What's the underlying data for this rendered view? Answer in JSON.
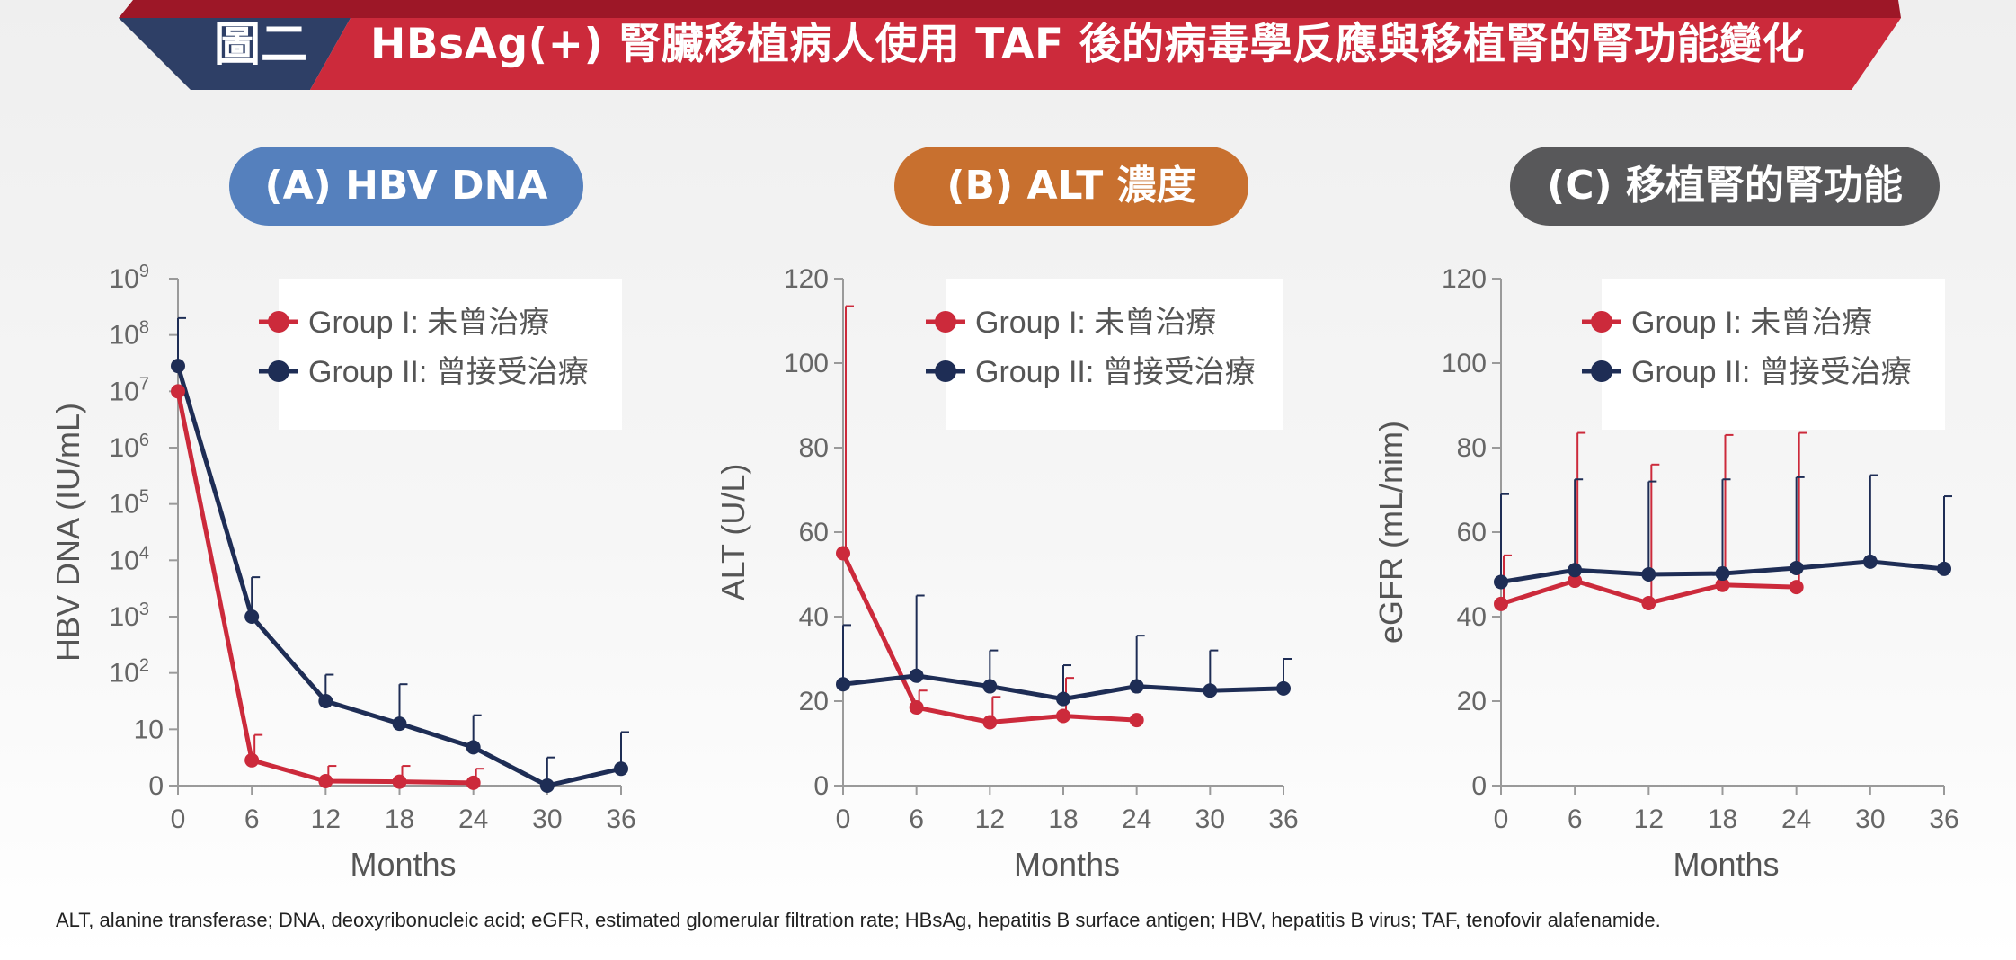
{
  "header": {
    "figure_label": "圖二",
    "title": "HBsAg(+) 腎臟移植病人使用 TAF 後的病毒學反應與移植腎的腎功能變化",
    "colors": {
      "dark": "#2e3f66",
      "red": "#cc2a3b",
      "red_dark": "#9d1727"
    }
  },
  "panels": [
    {
      "label": "(A) HBV DNA",
      "color": "#5580bd"
    },
    {
      "label": "(B) ALT 濃度",
      "color": "#c8702f"
    },
    {
      "label": "(C) 移植腎的腎功能",
      "color": "#58585a"
    }
  ],
  "chart_data": [
    {
      "type": "line",
      "xlabel": "Months",
      "ylabel": "HBV DNA (IU/mL)",
      "x_ticks": [
        0,
        6,
        12,
        18,
        24,
        30,
        36
      ],
      "xlim": [
        0,
        36
      ],
      "y_scale": "log (0 at axis origin)",
      "y_ticks": [
        {
          "base": "0",
          "exp": ""
        },
        {
          "base": "10",
          "exp": ""
        },
        {
          "base": "10",
          "exp": "2"
        },
        {
          "base": "10",
          "exp": "3"
        },
        {
          "base": "10",
          "exp": "4"
        },
        {
          "base": "10",
          "exp": "5"
        },
        {
          "base": "10",
          "exp": "6"
        },
        {
          "base": "10",
          "exp": "7"
        },
        {
          "base": "10",
          "exp": "8"
        },
        {
          "base": "10",
          "exp": "9"
        }
      ],
      "ylim_log10": [
        0,
        9
      ],
      "legend_position": "top-right",
      "series": [
        {
          "name": "Group I: 未曾治療",
          "color": "#cc2a3b",
          "x": [
            0,
            6,
            12,
            18,
            24
          ],
          "y_log10": [
            7.0,
            0.45,
            0.08,
            0.07,
            0.05
          ],
          "err_upper_log10": [
            7.0,
            0.9,
            0.35,
            0.35,
            0.3
          ]
        },
        {
          "name": "Group II: 曾接受治療",
          "color": "#1e2d55",
          "x": [
            0,
            6,
            12,
            18,
            24,
            30,
            36
          ],
          "y_log10": [
            7.45,
            3.0,
            1.5,
            1.1,
            0.68,
            0.0,
            0.3
          ],
          "err_upper_log10": [
            8.3,
            3.7,
            1.97,
            1.8,
            1.25,
            0.5,
            0.95
          ]
        }
      ]
    },
    {
      "type": "line",
      "xlabel": "Months",
      "ylabel": "ALT (U/L)",
      "x_ticks": [
        0,
        6,
        12,
        18,
        24,
        30,
        36
      ],
      "xlim": [
        0,
        36
      ],
      "y_ticks": [
        0,
        20,
        40,
        60,
        80,
        100,
        120
      ],
      "ylim": [
        0,
        120
      ],
      "legend_position": "top-right",
      "series": [
        {
          "name": "Group I: 未曾治療",
          "color": "#cc2a3b",
          "x": [
            0,
            6,
            12,
            18,
            24
          ],
          "y": [
            55,
            18.5,
            15,
            16.5,
            15.5
          ],
          "err_upper": [
            113.5,
            22.5,
            21,
            25.5,
            15.5
          ]
        },
        {
          "name": "Group II: 曾接受治療",
          "color": "#1e2d55",
          "x": [
            0,
            6,
            12,
            18,
            24,
            30,
            36
          ],
          "y": [
            24,
            26,
            23.5,
            20.5,
            23.5,
            22.5,
            23
          ],
          "err_upper": [
            38,
            45,
            32,
            28.5,
            35.5,
            32,
            30
          ]
        }
      ]
    },
    {
      "type": "line",
      "xlabel": "Months",
      "ylabel": "eGFR (mL/nim)",
      "x_ticks": [
        0,
        6,
        12,
        18,
        24,
        30,
        36
      ],
      "xlim": [
        0,
        36
      ],
      "y_ticks": [
        0,
        20,
        40,
        60,
        80,
        100,
        120
      ],
      "ylim": [
        0,
        120
      ],
      "legend_position": "top-right",
      "series": [
        {
          "name": "Group I: 未曾治療",
          "color": "#cc2a3b",
          "x": [
            0,
            6,
            12,
            18,
            24
          ],
          "y": [
            43,
            48.5,
            43.2,
            47.5,
            47
          ],
          "err_upper": [
            54.5,
            83.5,
            76,
            83,
            83.5
          ]
        },
        {
          "name": "Group II: 曾接受治療",
          "color": "#1e2d55",
          "x": [
            0,
            6,
            12,
            18,
            24,
            30,
            36
          ],
          "y": [
            48.2,
            51,
            50,
            50.2,
            51.5,
            53,
            51.3
          ],
          "err_upper": [
            69,
            72.5,
            72,
            72.5,
            73,
            73.5,
            68.5
          ]
        }
      ]
    }
  ],
  "footnote": "ALT, alanine transferase; DNA, deoxyribonucleic acid; eGFR, estimated glomerular filtration rate; HBsAg, hepatitis B surface antigen; HBV, hepatitis B virus; TAF, tenofovir alafenamide."
}
